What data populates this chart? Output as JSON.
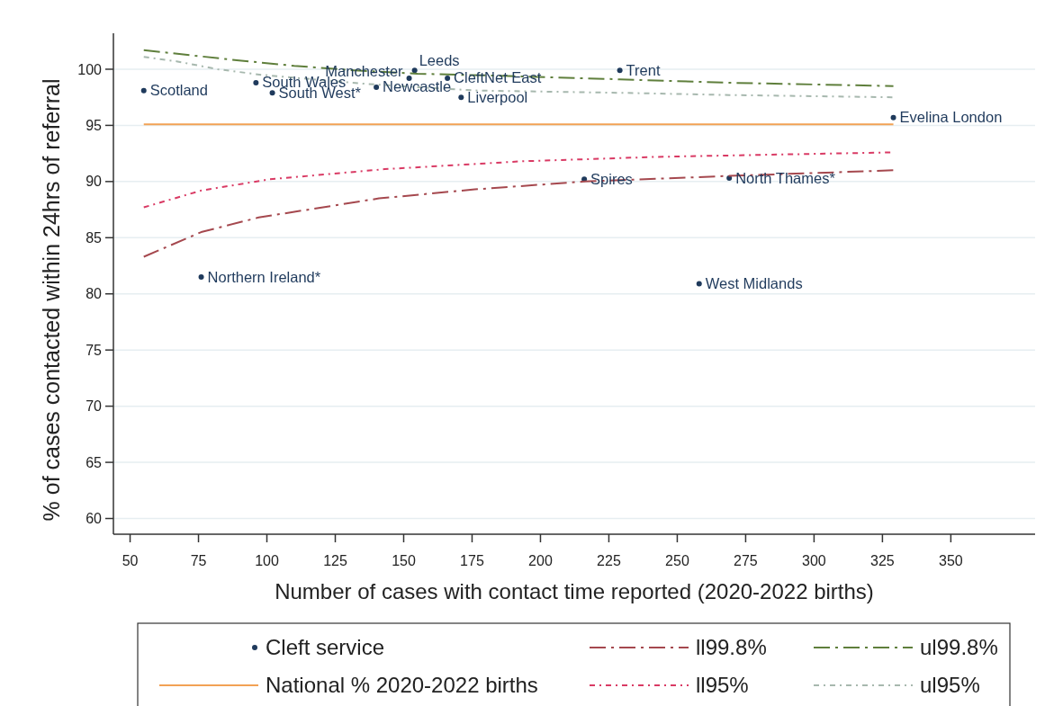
{
  "chart_data": {
    "type": "scatter",
    "xlabel": "Number of cases with contact time reported (2020-2022 births)",
    "ylabel": "% of cases contacted within 24hrs of referral",
    "xlim": [
      43.9,
      380.8
    ],
    "ylim": [
      58.6,
      103.2
    ],
    "xticks": [
      50,
      75,
      100,
      125,
      150,
      175,
      200,
      225,
      250,
      275,
      300,
      325,
      350
    ],
    "yticks": [
      60,
      65,
      70,
      75,
      80,
      85,
      90,
      95,
      100
    ],
    "grid": "y",
    "legend": "bottom",
    "series": [
      {
        "name": "Cleft service",
        "color": "#1f3a5c",
        "marker": "circle",
        "x": [
          55,
          76,
          96,
          102,
          140,
          152,
          154,
          166,
          171,
          216,
          229,
          258,
          269,
          329
        ],
        "values": [
          98.1,
          81.5,
          98.8,
          97.9,
          98.4,
          99.2,
          99.9,
          99.2,
          97.5,
          90.2,
          99.9,
          80.9,
          90.3,
          95.7
        ]
      },
      {
        "name": "National % 2020-2022 births",
        "type": "line",
        "color": "#f2a255",
        "line_style": "solid",
        "x": [
          55,
          329
        ],
        "values": [
          95.1,
          95.1
        ]
      },
      {
        "name": "ll99.8%",
        "type": "line",
        "color": "#a5484e",
        "line_style": "dashed",
        "x": [
          55,
          76,
          97,
          141,
          176,
          216,
          269,
          329
        ],
        "values": [
          83.3,
          85.5,
          86.8,
          88.5,
          89.3,
          90.0,
          90.5,
          91.0
        ]
      },
      {
        "name": "ll95%",
        "type": "line",
        "color": "#d93a64",
        "line_style": "dotted",
        "x": [
          55,
          76,
          101,
          143,
          193,
          243,
          329
        ],
        "values": [
          87.7,
          89.2,
          90.2,
          91.1,
          91.8,
          92.2,
          92.6
        ]
      },
      {
        "name": "ul99.8%",
        "type": "line",
        "color": "#5f7f3c",
        "line_style": "dashed",
        "x": [
          55,
          89,
          110,
          132,
          155,
          188,
          229,
          268,
          329
        ],
        "values": [
          101.7,
          100.8,
          100.3,
          99.9,
          99.6,
          99.4,
          99.1,
          98.8,
          98.5
        ]
      },
      {
        "name": "ul95%",
        "type": "line",
        "color": "#a7b8ae",
        "line_style": "dotted",
        "x": [
          55,
          67,
          82,
          98,
          117,
          136,
          155,
          177,
          229,
          269,
          329
        ],
        "values": [
          101.1,
          100.7,
          100.0,
          99.5,
          99.1,
          98.7,
          98.4,
          98.1,
          97.9,
          97.7,
          97.5
        ]
      }
    ],
    "annotations": [
      {
        "text": "Scotland",
        "x": 55,
        "y": 98.1
      },
      {
        "text": "Northern Ireland*",
        "x": 76,
        "y": 81.5
      },
      {
        "text": "South Wales",
        "x": 96,
        "y": 98.8
      },
      {
        "text": "South West*",
        "x": 102,
        "y": 97.9
      },
      {
        "text": "Newcastle",
        "x": 140,
        "y": 98.4
      },
      {
        "text": "Manchester",
        "x": 152,
        "y": 99.2
      },
      {
        "text": "Leeds",
        "x": 154,
        "y": 99.9
      },
      {
        "text": "CleftNet East",
        "x": 166,
        "y": 99.2
      },
      {
        "text": "Liverpool",
        "x": 171,
        "y": 97.5
      },
      {
        "text": "Spires",
        "x": 216,
        "y": 90.2
      },
      {
        "text": "Trent",
        "x": 229,
        "y": 99.9
      },
      {
        "text": "West Midlands",
        "x": 258,
        "y": 80.9
      },
      {
        "text": "North Thames*",
        "x": 269,
        "y": 90.3
      },
      {
        "text": "Evelina London",
        "x": 329,
        "y": 95.7
      }
    ]
  }
}
